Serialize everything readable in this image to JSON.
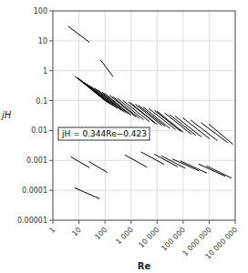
{
  "chart_data": {
    "type": "line",
    "log": true,
    "grid": true,
    "color": "black",
    "xlabel": "Re",
    "ylabel": "jH",
    "annotation": "jH = 0.344Re−0.423",
    "xlim": [
      1,
      10000000
    ],
    "ylim": [
      1e-05,
      100
    ],
    "xticks": [
      1,
      10,
      100,
      {
        "value": 1000,
        "label": "1 000"
      },
      {
        "value": 10000,
        "label": "10 000"
      },
      {
        "value": 100000,
        "label": "100 000"
      },
      {
        "value": 1000000,
        "label": "1 000 000"
      },
      {
        "value": 10000000,
        "label": "10 000 000"
      }
    ],
    "yticks": [
      1e-05,
      0.0001,
      0.001,
      0.01,
      0.1,
      1,
      10,
      100
    ],
    "series": [
      {
        "x": [
          4,
          25
        ],
        "values": [
          30,
          9
        ]
      },
      {
        "x": [
          70,
          200
        ],
        "values": [
          2.2,
          0.65
        ]
      },
      {
        "x": [
          7,
          70
        ],
        "values": [
          0.65,
          0.13
        ]
      },
      {
        "x": [
          9,
          90
        ],
        "values": [
          0.58,
          0.11
        ]
      },
      {
        "x": [
          11,
          110
        ],
        "values": [
          0.5,
          0.095
        ]
      },
      {
        "x": [
          13,
          130
        ],
        "values": [
          0.45,
          0.085
        ]
      },
      {
        "x": [
          16,
          160
        ],
        "values": [
          0.4,
          0.076
        ]
      },
      {
        "x": [
          20,
          200
        ],
        "values": [
          0.36,
          0.068
        ]
      },
      {
        "x": [
          25,
          250
        ],
        "values": [
          0.32,
          0.061
        ]
      },
      {
        "x": [
          30,
          300
        ],
        "values": [
          0.29,
          0.055
        ]
      },
      {
        "x": [
          40,
          400
        ],
        "values": [
          0.26,
          0.049
        ]
      },
      {
        "x": [
          50,
          500
        ],
        "values": [
          0.23,
          0.044
        ]
      },
      {
        "x": [
          60,
          600
        ],
        "values": [
          0.21,
          0.04
        ]
      },
      {
        "x": [
          80,
          800
        ],
        "values": [
          0.19,
          0.036
        ]
      },
      {
        "x": [
          100,
          1000
        ],
        "values": [
          0.17,
          0.033
        ]
      },
      {
        "x": [
          150,
          1500
        ],
        "values": [
          0.15,
          0.029
        ]
      },
      {
        "x": [
          200,
          2000
        ],
        "values": [
          0.135,
          0.026
        ]
      },
      {
        "x": [
          300,
          3000
        ],
        "values": [
          0.12,
          0.023
        ]
      },
      {
        "x": [
          500,
          5000
        ],
        "values": [
          0.1,
          0.02
        ]
      },
      {
        "x": [
          800,
          8000
        ],
        "values": [
          0.09,
          0.018
        ]
      },
      {
        "x": [
          1000,
          10000
        ],
        "values": [
          0.082,
          0.016
        ]
      },
      {
        "x": [
          1500,
          15000
        ],
        "values": [
          0.074,
          0.015
        ]
      },
      {
        "x": [
          2000,
          20000
        ],
        "values": [
          0.068,
          0.014
        ]
      },
      {
        "x": [
          3000,
          30000
        ],
        "values": [
          0.06,
          0.012
        ]
      },
      {
        "x": [
          5000,
          50000
        ],
        "values": [
          0.053,
          0.011
        ]
      },
      {
        "x": [
          8000,
          80000
        ],
        "values": [
          0.047,
          0.0095
        ]
      },
      {
        "x": [
          10000,
          100000
        ],
        "values": [
          0.044,
          0.0088
        ]
      },
      {
        "x": [
          20000,
          200000
        ],
        "values": [
          0.038,
          0.0077
        ]
      },
      {
        "x": [
          30000,
          300000
        ],
        "values": [
          0.034,
          0.007
        ]
      },
      {
        "x": [
          50000,
          500000
        ],
        "values": [
          0.03,
          0.0062
        ]
      },
      {
        "x": [
          100000,
          1000000
        ],
        "values": [
          0.026,
          0.0054
        ]
      },
      {
        "x": [
          200000,
          2000000
        ],
        "values": [
          0.022,
          0.0047
        ]
      },
      {
        "x": [
          500000,
          5000000
        ],
        "values": [
          0.018,
          0.004
        ]
      },
      {
        "x": [
          1000000,
          8000000
        ],
        "values": [
          0.016,
          0.0035
        ]
      },
      {
        "x": [
          5,
          25
        ],
        "values": [
          0.0013,
          0.00058
        ]
      },
      {
        "x": [
          25,
          120
        ],
        "values": [
          0.0009,
          0.0004
        ]
      },
      {
        "x": [
          7,
          60
        ],
        "values": [
          0.00012,
          5.3e-05
        ]
      },
      {
        "x": [
          600,
          4000
        ],
        "values": [
          0.0015,
          0.0006
        ]
      },
      {
        "x": [
          2500,
          18000
        ],
        "values": [
          0.0019,
          0.00075
        ]
      },
      {
        "x": [
          8000,
          60000
        ],
        "values": [
          0.0016,
          0.00062
        ]
      },
      {
        "x": [
          15000,
          120000
        ],
        "values": [
          0.0014,
          0.00055
        ]
      },
      {
        "x": [
          40000,
          400000
        ],
        "values": [
          0.0011,
          0.00045
        ]
      },
      {
        "x": [
          80000,
          800000
        ],
        "values": [
          0.00095,
          0.00038
        ]
      },
      {
        "x": [
          400000,
          4000000
        ],
        "values": [
          0.00075,
          0.0003
        ]
      },
      {
        "x": [
          800000,
          7000000
        ],
        "values": [
          0.00065,
          0.00026
        ]
      }
    ]
  }
}
